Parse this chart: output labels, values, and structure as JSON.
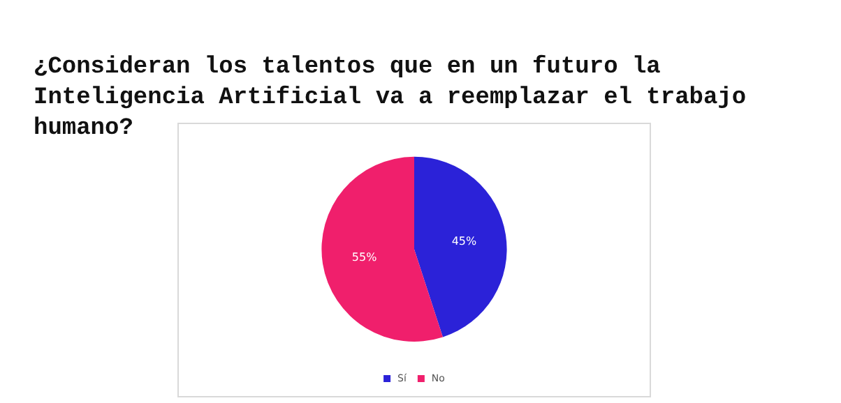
{
  "chart_data": {
    "type": "pie",
    "title": "¿Consideran los talentos que en un futuro la Inteligencia Artificial va a reemplazar el trabajo humano?",
    "categories": [
      "Sí",
      "No"
    ],
    "values": [
      45,
      55
    ],
    "colors": [
      "#2b22d8",
      "#f01f6c"
    ],
    "value_labels": [
      "45%",
      "55%"
    ],
    "legend": "bottom"
  }
}
